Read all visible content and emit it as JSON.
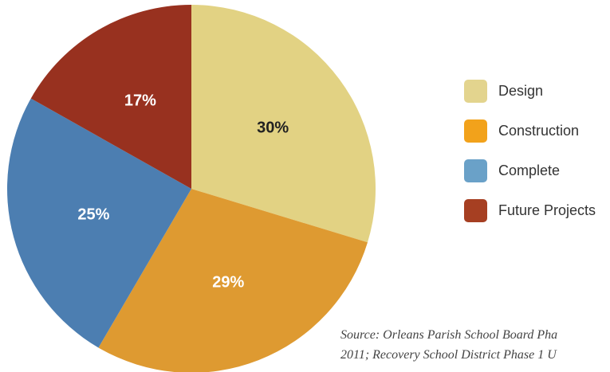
{
  "chart_data": {
    "type": "pie",
    "categories": [
      "Design",
      "Construction",
      "Complete",
      "Future Projects"
    ],
    "values": [
      30,
      29,
      25,
      17
    ],
    "labels": [
      "30%",
      "29%",
      "25%",
      "17%"
    ],
    "colors": [
      "#E2D283",
      "#DE9A31",
      "#4C7EB1",
      "#98311F"
    ],
    "label_colors": [
      "#222222",
      "#ffffff",
      "#ffffff",
      "#ffffff"
    ],
    "start_angle_deg": 0,
    "direction": "clockwise",
    "legend_position": "right",
    "legend": [
      {
        "label": "Design",
        "color": "#E3D48E"
      },
      {
        "label": "Construction",
        "color": "#F2A21B"
      },
      {
        "label": "Complete",
        "color": "#6AA1C8"
      },
      {
        "label": "Future Projects",
        "color": "#A63F22"
      }
    ]
  },
  "source": {
    "line1": "Source: Orleans Parish School Board Pha",
    "line2": "2011; Recovery School District Phase 1 U"
  }
}
